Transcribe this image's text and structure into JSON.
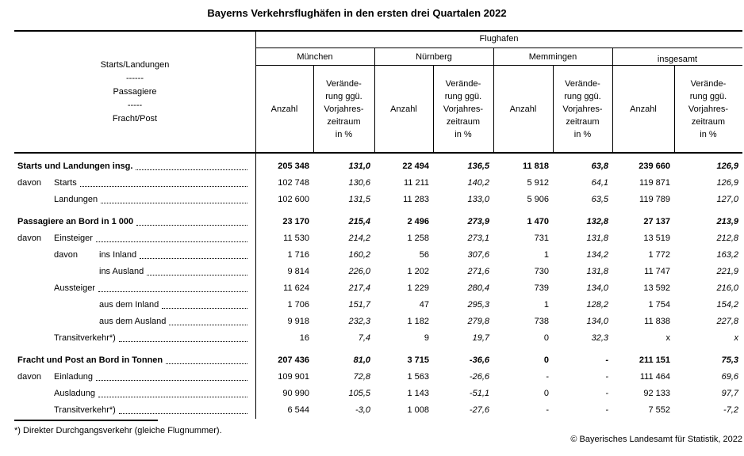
{
  "title": "Bayerns Verkehrsflughäfen in den ersten drei Quartalen 2022",
  "table": {
    "flughafen_header": "Flughafen",
    "row_header": {
      "lines": [
        "Starts/Landungen",
        "------",
        "Passagiere",
        "-----",
        "Fracht/Post"
      ]
    },
    "airports": [
      "München",
      "Nürnberg",
      "Memmingen",
      "insgesamt"
    ],
    "subcols": {
      "anzahl": "Anzahl",
      "veraenderung_lines": [
        "Verände-",
        "rung ggü.",
        "Vorjahres-",
        "zeitraum",
        "in %"
      ]
    },
    "rows": [
      {
        "prefix": "",
        "label": "Starts und Landungen insg.",
        "indent": 0,
        "bold": true,
        "section_gap": false,
        "values": [
          "205 348",
          "131,0",
          "22 494",
          "136,5",
          "11 818",
          "63,8",
          "239 660",
          "126,9"
        ]
      },
      {
        "prefix": "davon",
        "label": "Starts",
        "indent": 1,
        "bold": false,
        "section_gap": false,
        "values": [
          "102 748",
          "130,6",
          "11 211",
          "140,2",
          "5 912",
          "64,1",
          "119 871",
          "126,9"
        ]
      },
      {
        "prefix": "",
        "label": "Landungen",
        "indent": 1,
        "bold": false,
        "section_gap": false,
        "values": [
          "102 600",
          "131,5",
          "11 283",
          "133,0",
          "5 906",
          "63,5",
          "119 789",
          "127,0"
        ]
      },
      {
        "prefix": "",
        "label": "Passagiere an Bord in 1 000",
        "indent": 0,
        "bold": true,
        "section_gap": true,
        "values": [
          "23 170",
          "215,4",
          "2 496",
          "273,9",
          "1 470",
          "132,8",
          "27 137",
          "213,9"
        ]
      },
      {
        "prefix": "davon",
        "label": "Einsteiger",
        "indent": 1,
        "bold": false,
        "section_gap": false,
        "values": [
          "11 530",
          "214,2",
          "1 258",
          "273,1",
          "731",
          "131,8",
          "13 519",
          "212,8"
        ]
      },
      {
        "prefix": "davon",
        "label": "ins Inland",
        "indent": 2,
        "bold": false,
        "section_gap": false,
        "values": [
          "1 716",
          "160,2",
          "56",
          "307,6",
          "1",
          "134,2",
          "1 772",
          "163,2"
        ]
      },
      {
        "prefix": "",
        "label": "ins Ausland",
        "indent": 2,
        "bold": false,
        "section_gap": false,
        "values": [
          "9 814",
          "226,0",
          "1 202",
          "271,6",
          "730",
          "131,8",
          "11 747",
          "221,9"
        ]
      },
      {
        "prefix": "",
        "label": "Aussteiger",
        "indent": 1,
        "bold": false,
        "section_gap": false,
        "values": [
          "11 624",
          "217,4",
          "1 229",
          "280,4",
          "739",
          "134,0",
          "13 592",
          "216,0"
        ]
      },
      {
        "prefix": "",
        "label": "aus dem Inland",
        "indent": 2,
        "bold": false,
        "section_gap": false,
        "values": [
          "1 706",
          "151,7",
          "47",
          "295,3",
          "1",
          "128,2",
          "1 754",
          "154,2"
        ]
      },
      {
        "prefix": "",
        "label": "aus dem Ausland",
        "indent": 2,
        "bold": false,
        "section_gap": false,
        "values": [
          "9 918",
          "232,3",
          "1 182",
          "279,8",
          "738",
          "134,0",
          "11 838",
          "227,8"
        ]
      },
      {
        "prefix": "",
        "label": "Transitverkehr*)",
        "indent": 1,
        "bold": false,
        "section_gap": false,
        "values": [
          "16",
          "7,4",
          "9",
          "19,7",
          "0",
          "32,3",
          "x",
          "x"
        ]
      },
      {
        "prefix": "",
        "label": "Fracht und Post an Bord in Tonnen",
        "indent": 0,
        "bold": true,
        "section_gap": true,
        "values": [
          "207 436",
          "81,0",
          "3 715",
          "-36,6",
          "0",
          "-",
          "211 151",
          "75,3"
        ]
      },
      {
        "prefix": "davon",
        "label": "Einladung",
        "indent": 1,
        "bold": false,
        "section_gap": false,
        "values": [
          "109 901",
          "72,8",
          "1 563",
          "-26,6",
          "-",
          "-",
          "111 464",
          "69,6"
        ]
      },
      {
        "prefix": "",
        "label": "Ausladung",
        "indent": 1,
        "bold": false,
        "section_gap": false,
        "values": [
          "90 990",
          "105,5",
          "1 143",
          "-51,1",
          "0",
          "-",
          "92 133",
          "97,7"
        ]
      },
      {
        "prefix": "",
        "label": "Transitverkehr*)",
        "indent": 1,
        "bold": false,
        "section_gap": false,
        "values": [
          "6 544",
          "-3,0",
          "1 008",
          "-27,6",
          "-",
          "-",
          "7 552",
          "-7,2"
        ]
      }
    ]
  },
  "footnote": "*) Direkter Durchgangsverkehr (gleiche Flugnummer).",
  "copyright": "© Bayerisches Landesamt für Statistik, 2022"
}
